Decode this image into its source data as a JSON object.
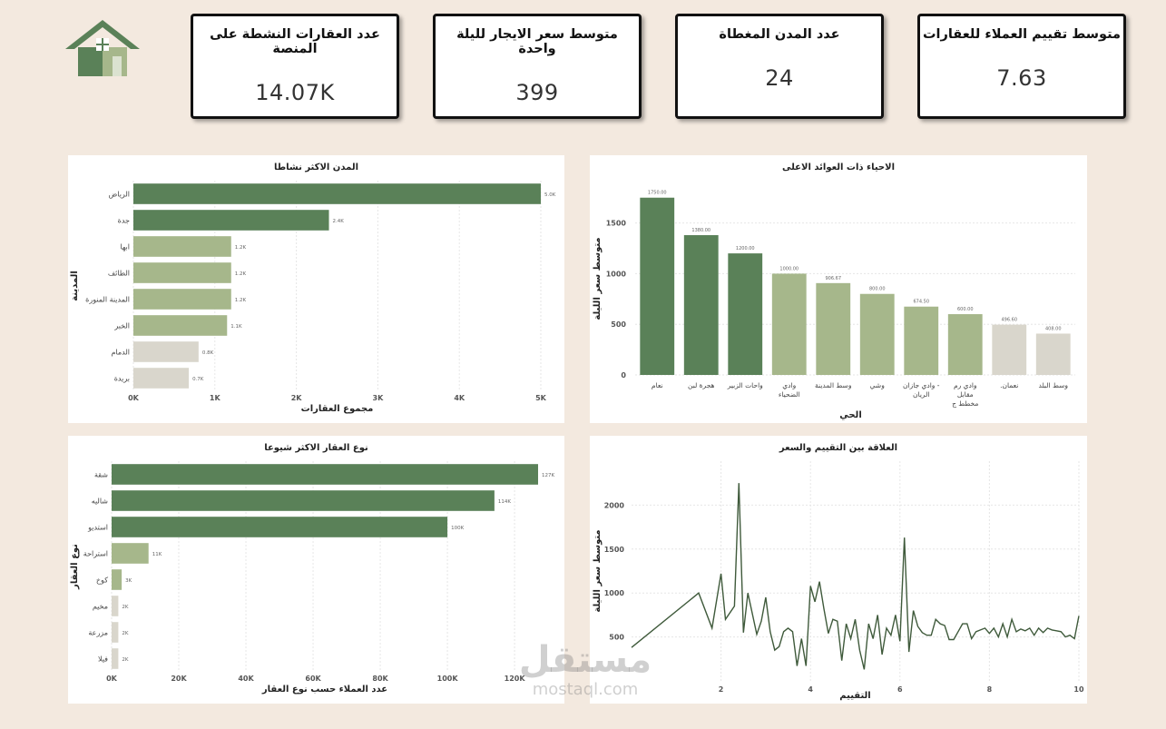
{
  "kpis": [
    {
      "title": "عدد العقارات النشطة على المنصة",
      "value": "14.07K"
    },
    {
      "title": "متوسط سعر الايجار لليلة واحدة",
      "value": "399"
    },
    {
      "title": "عدد المدن المغطاة",
      "value": "24"
    },
    {
      "title": "متوسط تقييم العملاء للعقارات",
      "value": "7.63"
    }
  ],
  "watermark": {
    "ar": "مستقل",
    "en": "mostaql.com"
  },
  "colors": {
    "dark": "#5a8158",
    "mid": "#a6b78b",
    "light": "#d9d6cc",
    "line": "#3f5a3b"
  },
  "chart_data": [
    {
      "id": "cities",
      "type": "bar",
      "orientation": "horizontal",
      "title": "المدن الاكثر نشاطا",
      "xlabel": "مجموع العقارات",
      "ylabel": "المدينة",
      "categories": [
        "الرياض",
        "جدة",
        "ابها",
        "الطائف",
        "المدينة المنورة",
        "الخبر",
        "الدمام",
        "بريدة"
      ],
      "values": [
        5000,
        2400,
        1200,
        1200,
        1200,
        1150,
        800,
        680
      ],
      "data_labels": [
        "5.0K",
        "2.4K",
        "1.2K",
        "1.2K",
        "1.2K",
        "1.1K",
        "0.8K",
        "0.7K"
      ],
      "shades": [
        "dark",
        "dark",
        "mid",
        "mid",
        "mid",
        "mid",
        "light",
        "light"
      ],
      "xlim": [
        0,
        5000
      ],
      "xticks": [
        0,
        1000,
        2000,
        3000,
        4000,
        5000
      ],
      "xtick_labels": [
        "0K",
        "1K",
        "2K",
        "3K",
        "4K",
        "5K"
      ]
    },
    {
      "id": "neighborhoods",
      "type": "bar",
      "orientation": "vertical",
      "title": "الاحياء ذات العوائد الاعلى",
      "xlabel": "الحي",
      "ylabel": "متوسط سعر الليلة",
      "categories": [
        [
          "نعام"
        ],
        [
          "هجرة لبن"
        ],
        [
          "واحات الزبير"
        ],
        [
          "وادي",
          "الضحياء"
        ],
        [
          "وسط المدينة"
        ],
        [
          "وشي"
        ],
        [
          "وادي جازان -",
          "الريان"
        ],
        [
          "وادي رم",
          "مقابل",
          "مخطط ج"
        ],
        [
          ".نعمان"
        ],
        [
          "وسط البلد"
        ]
      ],
      "values": [
        1750,
        1380,
        1200,
        1000,
        906.67,
        800,
        674.5,
        600,
        496.6,
        408
      ],
      "data_labels": [
        "1750.00",
        "1380.00",
        "1200.00",
        "1000.00",
        "906.67",
        "800.00",
        "674.50",
        "600.00",
        "496.60",
        "408.00"
      ],
      "shades": [
        "dark",
        "dark",
        "dark",
        "mid",
        "mid",
        "mid",
        "mid",
        "mid",
        "light",
        "light"
      ],
      "ylim": [
        0,
        1900
      ],
      "yticks": [
        0,
        500,
        1000,
        1500
      ],
      "ytick_labels": [
        "0",
        "500",
        "1000",
        "1500"
      ]
    },
    {
      "id": "types",
      "type": "bar",
      "orientation": "horizontal",
      "title": "نوع العقار الاكثر شيوعا",
      "xlabel": "عدد العملاء حسب نوع العقار",
      "ylabel": "نوع العقار",
      "categories": [
        "شقة",
        "شاليه",
        "استديو",
        "استراحة",
        "كوخ",
        "مخيم",
        "مزرعة",
        "فيلا"
      ],
      "values": [
        127000,
        114000,
        100000,
        11000,
        3000,
        2000,
        2000,
        2000
      ],
      "data_labels": [
        "127K",
        "114K",
        "100K",
        "11K",
        "3K",
        "2K",
        "2K",
        "2K"
      ],
      "shades": [
        "dark",
        "dark",
        "dark",
        "mid",
        "mid",
        "light",
        "light",
        "light"
      ],
      "xlim": [
        0,
        127000
      ],
      "xticks": [
        0,
        20000,
        40000,
        60000,
        80000,
        100000,
        120000
      ],
      "xtick_labels": [
        "0K",
        "20K",
        "40K",
        "60K",
        "80K",
        "100K",
        "120K"
      ]
    },
    {
      "id": "rating_price",
      "type": "line",
      "title": "العلاقة بين التقييم والسعر",
      "xlabel": "التقييم",
      "ylabel": "متوسط سعر الليلة",
      "xlim": [
        0,
        10
      ],
      "ylim": [
        0,
        2500
      ],
      "xticks": [
        2,
        4,
        6,
        8,
        10
      ],
      "xtick_labels": [
        "2",
        "4",
        "6",
        "8",
        "10"
      ],
      "yticks": [
        500,
        1000,
        1500,
        2000
      ],
      "ytick_labels": [
        "500",
        "1000",
        "1500",
        "2000"
      ],
      "x": [
        0,
        1.5,
        1.8,
        2.0,
        2.1,
        2.3,
        2.4,
        2.5,
        2.6,
        2.8,
        2.9,
        3.0,
        3.1,
        3.2,
        3.3,
        3.4,
        3.5,
        3.6,
        3.7,
        3.8,
        3.9,
        4.0,
        4.1,
        4.2,
        4.3,
        4.4,
        4.5,
        4.6,
        4.7,
        4.8,
        4.9,
        5.0,
        5.1,
        5.2,
        5.3,
        5.4,
        5.5,
        5.6,
        5.7,
        5.8,
        5.9,
        6.0,
        6.1,
        6.2,
        6.3,
        6.4,
        6.5,
        6.6,
        6.7,
        6.8,
        6.9,
        7.0,
        7.1,
        7.2,
        7.3,
        7.4,
        7.5,
        7.6,
        7.7,
        7.8,
        7.9,
        8.0,
        8.1,
        8.2,
        8.3,
        8.4,
        8.5,
        8.6,
        8.7,
        8.8,
        8.9,
        9.0,
        9.1,
        9.2,
        9.3,
        9.4,
        9.5,
        9.6,
        9.7,
        9.8,
        9.9,
        10.0
      ],
      "y": [
        380,
        1000,
        600,
        1220,
        700,
        850,
        2250,
        550,
        1000,
        530,
        680,
        950,
        560,
        350,
        390,
        560,
        600,
        560,
        170,
        480,
        170,
        1080,
        900,
        1130,
        820,
        540,
        700,
        680,
        230,
        650,
        480,
        700,
        350,
        130,
        650,
        480,
        750,
        300,
        600,
        520,
        750,
        450,
        1630,
        330,
        800,
        620,
        550,
        520,
        520,
        700,
        650,
        630,
        470,
        470,
        560,
        650,
        650,
        480,
        560,
        580,
        600,
        540,
        600,
        500,
        650,
        500,
        700,
        560,
        590,
        570,
        600,
        520,
        600,
        550,
        600,
        580,
        570,
        560,
        500,
        520,
        480,
        740
      ]
    }
  ]
}
